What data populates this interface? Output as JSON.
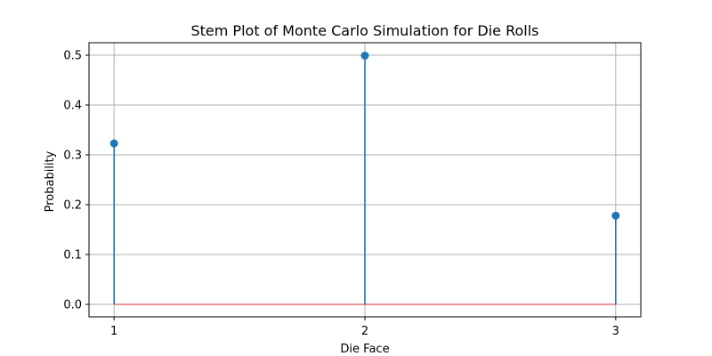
{
  "chart_data": {
    "type": "stem",
    "title": "Stem Plot of Monte Carlo Simulation for Die Rolls",
    "xlabel": "Die Face",
    "ylabel": "Probability",
    "x": [
      1,
      2,
      3
    ],
    "y": [
      0.323,
      0.499,
      0.178
    ],
    "xticks": [
      "1",
      "2",
      "3"
    ],
    "yticks": [
      "0.0",
      "0.1",
      "0.2",
      "0.3",
      "0.4",
      "0.5"
    ],
    "xlim": [
      0.9,
      3.1
    ],
    "ylim": [
      -0.025,
      0.525
    ],
    "grid": true,
    "colors": {
      "stem": "#1f77b4",
      "grid": "#b0b0b0",
      "axes": "#000000"
    }
  }
}
